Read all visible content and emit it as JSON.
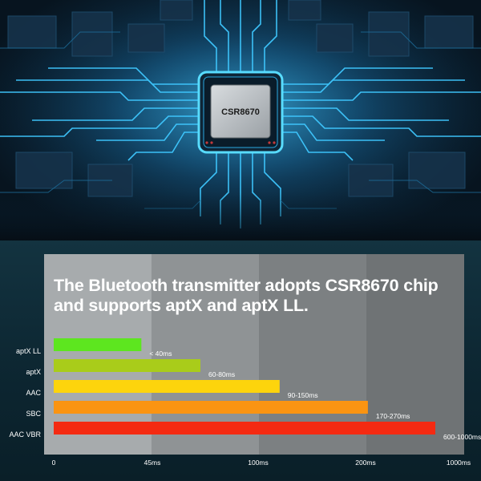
{
  "hero": {
    "chip_label": "CSR8670"
  },
  "headline": "The Bluetooth transmitter adopts CSR8670 chip and supports aptX and aptX LL.",
  "chart_data": {
    "type": "bar",
    "orientation": "horizontal",
    "title": "The Bluetooth transmitter adopts CSR8670 chip and supports aptX and aptX LL.",
    "categories": [
      "aptX LL",
      "aptX",
      "AAC",
      "SBC",
      "AAC VBR"
    ],
    "value_labels": [
      "< 40ms",
      "60-80ms",
      "90-150ms",
      "170-270ms",
      "600-1000ms"
    ],
    "values_ms": [
      40,
      70,
      120,
      220,
      800
    ],
    "colors": [
      "#5de61f",
      "#a9cc1a",
      "#fdd40c",
      "#fa9412",
      "#f42a12"
    ],
    "x_ticks": [
      "0",
      "45ms",
      "100ms",
      "200ms",
      "1000ms"
    ],
    "x_tick_values": [
      0,
      45,
      100,
      200,
      1000
    ],
    "x_scale": "piecewise",
    "grid": false,
    "legend": "none"
  }
}
